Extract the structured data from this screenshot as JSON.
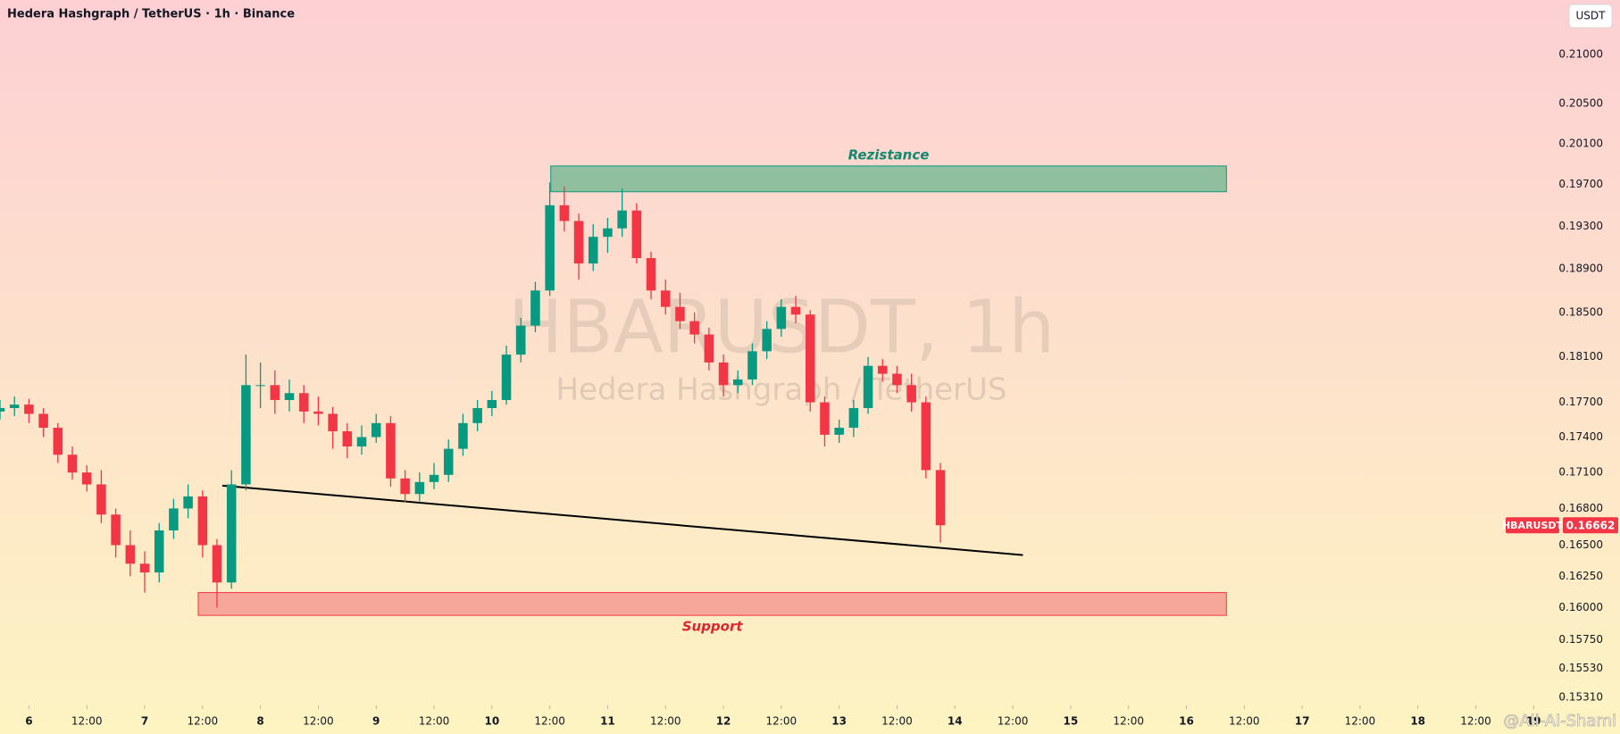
{
  "chart_data": {
    "type": "candlestick",
    "title": "Hedera Hashgraph / TetherUS · 1h · Binance",
    "currency": "USDT",
    "symbol": "HBARUSDT",
    "watermark": "HBARUSDT, 1h",
    "watermark_subtitle": "Hedera Hashgraph / TetherUS",
    "author": "@Ali-Al-Shami",
    "log_scale": true,
    "grid": false,
    "up_color": "#089981",
    "down_color": "#f23645",
    "xlim": [
      -6,
      317.5
    ],
    "xticks": [
      {
        "value": 0,
        "label": "6"
      },
      {
        "value": 12,
        "label": "12:00"
      },
      {
        "value": 24,
        "label": "7"
      },
      {
        "value": 36,
        "label": "12:00"
      },
      {
        "value": 48,
        "label": "8"
      },
      {
        "value": 60,
        "label": "12:00"
      },
      {
        "value": 72,
        "label": "9"
      },
      {
        "value": 84,
        "label": "12:00"
      },
      {
        "value": 96,
        "label": "10"
      },
      {
        "value": 108,
        "label": "12:00"
      },
      {
        "value": 120,
        "label": "11"
      },
      {
        "value": 132,
        "label": "12:00"
      },
      {
        "value": 144,
        "label": "12"
      },
      {
        "value": 156,
        "label": "12:00"
      },
      {
        "value": 168,
        "label": "13"
      },
      {
        "value": 180,
        "label": "12:00"
      },
      {
        "value": 192,
        "label": "14"
      },
      {
        "value": 204,
        "label": "12:00"
      },
      {
        "value": 216,
        "label": "15"
      },
      {
        "value": 228,
        "label": "12:00"
      },
      {
        "value": 240,
        "label": "16"
      },
      {
        "value": 252,
        "label": "12:00"
      },
      {
        "value": 264,
        "label": "17"
      },
      {
        "value": 276,
        "label": "12:00"
      },
      {
        "value": 288,
        "label": "18"
      },
      {
        "value": 300,
        "label": "12:00"
      },
      {
        "value": 312,
        "label": "19"
      }
    ],
    "ylim": [
      0.1525,
      0.2157
    ],
    "yticks": [
      {
        "value": 0.21,
        "label": "0.21000"
      },
      {
        "value": 0.205,
        "label": "0.20500"
      },
      {
        "value": 0.201,
        "label": "0.20100"
      },
      {
        "value": 0.197,
        "label": "0.19700"
      },
      {
        "value": 0.193,
        "label": "0.19300"
      },
      {
        "value": 0.189,
        "label": "0.18900"
      },
      {
        "value": 0.185,
        "label": "0.18500"
      },
      {
        "value": 0.181,
        "label": "0.18100"
      },
      {
        "value": 0.177,
        "label": "0.17700"
      },
      {
        "value": 0.174,
        "label": "0.17400"
      },
      {
        "value": 0.171,
        "label": "0.17100"
      },
      {
        "value": 0.168,
        "label": "0.16800"
      },
      {
        "value": 0.165,
        "label": "0.16500"
      },
      {
        "value": 0.1625,
        "label": "0.16250"
      },
      {
        "value": 0.16,
        "label": "0.16000"
      },
      {
        "value": 0.1575,
        "label": "0.15750"
      },
      {
        "value": 0.1553,
        "label": "0.15530"
      },
      {
        "value": 0.1531,
        "label": "0.15310"
      }
    ],
    "x": [
      -6,
      -3,
      0,
      3,
      6,
      9,
      12,
      15,
      18,
      21,
      24,
      27,
      30,
      33,
      36,
      39,
      42,
      45,
      48,
      51,
      54,
      57,
      60,
      63,
      66,
      69,
      72,
      75,
      78,
      81,
      84,
      87,
      90,
      93,
      96,
      99,
      102,
      105,
      108,
      111,
      114,
      117,
      120,
      123,
      126,
      129,
      132,
      135,
      138,
      141,
      144,
      147,
      150,
      153,
      156,
      159,
      162,
      165,
      168,
      171,
      174,
      177,
      180,
      183,
      186,
      189
    ],
    "open": [
      0.1762,
      0.1765,
      0.1768,
      0.176,
      0.1748,
      0.1725,
      0.171,
      0.17,
      0.1675,
      0.165,
      0.1635,
      0.1628,
      0.1662,
      0.168,
      0.169,
      0.165,
      0.162,
      0.17,
      0.1785,
      0.1785,
      0.1772,
      0.1778,
      0.1762,
      0.176,
      0.1745,
      0.1732,
      0.174,
      0.1752,
      0.1705,
      0.1692,
      0.1702,
      0.1708,
      0.173,
      0.1752,
      0.1765,
      0.1772,
      0.1812,
      0.1838,
      0.187,
      0.195,
      0.1935,
      0.1895,
      0.192,
      0.1928,
      0.1945,
      0.19,
      0.187,
      0.1855,
      0.1842,
      0.183,
      0.1805,
      0.1785,
      0.179,
      0.1815,
      0.1835,
      0.1855,
      0.1848,
      0.177,
      0.1742,
      0.1748,
      0.1765,
      0.1802,
      0.1795,
      0.1785,
      0.177,
      0.1712
    ],
    "high": [
      0.1772,
      0.1775,
      0.1773,
      0.1765,
      0.1752,
      0.1732,
      0.1716,
      0.1712,
      0.168,
      0.1662,
      0.1645,
      0.1668,
      0.1688,
      0.17,
      0.1695,
      0.1655,
      0.1712,
      0.1812,
      0.1805,
      0.1798,
      0.179,
      0.1785,
      0.1775,
      0.1766,
      0.1752,
      0.175,
      0.176,
      0.1758,
      0.1712,
      0.171,
      0.1718,
      0.1738,
      0.176,
      0.1772,
      0.178,
      0.182,
      0.1845,
      0.1878,
      0.1972,
      0.1968,
      0.1942,
      0.1932,
      0.1938,
      0.1966,
      0.1952,
      0.1906,
      0.188,
      0.1868,
      0.185,
      0.1836,
      0.1812,
      0.1798,
      0.1822,
      0.1842,
      0.1862,
      0.1865,
      0.1852,
      0.1775,
      0.1755,
      0.1772,
      0.181,
      0.1808,
      0.1802,
      0.1795,
      0.1775,
      0.1718
    ],
    "low": [
      0.1755,
      0.1758,
      0.1752,
      0.174,
      0.1718,
      0.1704,
      0.1694,
      0.1668,
      0.164,
      0.1625,
      0.1612,
      0.162,
      0.1655,
      0.1672,
      0.164,
      0.16,
      0.1615,
      0.1695,
      0.1765,
      0.176,
      0.1762,
      0.1752,
      0.175,
      0.173,
      0.1722,
      0.1725,
      0.1735,
      0.1698,
      0.1685,
      0.1686,
      0.1696,
      0.1702,
      0.1724,
      0.1745,
      0.1758,
      0.1768,
      0.1805,
      0.1832,
      0.1865,
      0.1925,
      0.188,
      0.1888,
      0.1905,
      0.192,
      0.1895,
      0.1862,
      0.1848,
      0.1835,
      0.1822,
      0.1798,
      0.1775,
      0.1778,
      0.1785,
      0.1808,
      0.1828,
      0.184,
      0.1762,
      0.1732,
      0.1735,
      0.174,
      0.176,
      0.1788,
      0.1778,
      0.1762,
      0.1705,
      0.1652
    ],
    "close": [
      0.1765,
      0.1768,
      0.176,
      0.1748,
      0.1725,
      0.171,
      0.17,
      0.1675,
      0.165,
      0.1635,
      0.1628,
      0.1662,
      0.168,
      0.169,
      0.165,
      0.162,
      0.17,
      0.1785,
      0.1785,
      0.1772,
      0.1778,
      0.1762,
      0.176,
      0.1745,
      0.1732,
      0.174,
      0.1752,
      0.1705,
      0.1692,
      0.1702,
      0.1708,
      0.173,
      0.1752,
      0.1765,
      0.1772,
      0.1812,
      0.1838,
      0.187,
      0.195,
      0.1935,
      0.1895,
      0.192,
      0.1928,
      0.1945,
      0.19,
      0.187,
      0.1855,
      0.1842,
      0.183,
      0.1805,
      0.1785,
      0.179,
      0.1815,
      0.1835,
      0.1855,
      0.1848,
      0.177,
      0.1742,
      0.1748,
      0.1765,
      0.1802,
      0.1795,
      0.1785,
      0.177,
      0.1712,
      0.16662
    ],
    "zones": [
      {
        "label": "Rezistance",
        "x": [
          108.2,
          248.3
        ],
        "y": [
          0.1963,
          0.1988
        ],
        "color": "#8fbf9f",
        "border": "#089981",
        "text_color": "#138a70"
      },
      {
        "label": "Support",
        "x": [
          35.1,
          248.3
        ],
        "y": [
          0.1594,
          0.1612
        ],
        "color": "#f7a79a",
        "border": "#f23645",
        "text_color": "#e0252f"
      }
    ],
    "trendline": {
      "x": [
        40.1,
        206.1
      ],
      "y": [
        0.1699,
        0.1642
      ],
      "color": "#000000"
    }
  }
}
